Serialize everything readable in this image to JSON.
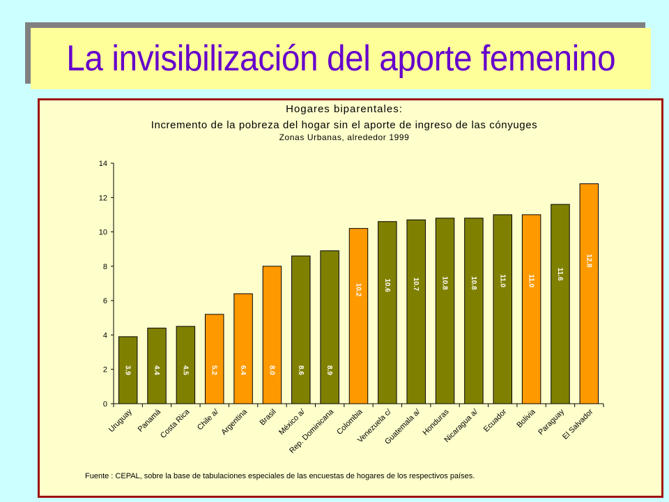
{
  "slide": {
    "title": "La invisibilización del aporte femenino"
  },
  "colors": {
    "background": "#ccffff",
    "title_bg": "#ffff99",
    "title_text": "#6600cc",
    "chart_bg": "#ffffcc",
    "frame": "#a01010",
    "olive": "#808000",
    "orange": "#ff9900"
  },
  "chart_data": {
    "type": "bar",
    "title": "Hogares biparentales:",
    "subtitle": "Incremento de la pobreza del hogar sin el aporte de ingreso de  las cónyuges",
    "subtitle2": "Zonas Urbanas, alrededor 1999",
    "categories": [
      "Uruguay",
      "Panamá",
      "Costa Rica",
      "Chile a/",
      "Argentina",
      "Brasil",
      "México a/",
      "Rep. Dominicana",
      "Colombia",
      "Venezuela c/",
      "Guatemala a/",
      "Honduras",
      "Nicaragua a/",
      "Ecuador",
      "Bolivia",
      "Paraguay",
      "El Salvador"
    ],
    "values": [
      3.9,
      4.4,
      4.5,
      5.2,
      6.4,
      8.0,
      8.6,
      8.9,
      10.2,
      10.6,
      10.7,
      10.8,
      10.8,
      11.0,
      11.0,
      11.6,
      12.8
    ],
    "value_labels": [
      "3.9",
      "4.4",
      "4.5",
      "5.2",
      "6.4",
      "8.0",
      "8.6",
      "8.9",
      "10.2",
      "10.6",
      "10.7",
      "10.8",
      "10.8",
      "11.0",
      "11.0",
      "11.6",
      "12.8"
    ],
    "bar_colors": [
      "olive",
      "olive",
      "olive",
      "orange",
      "orange",
      "orange",
      "olive",
      "olive",
      "orange",
      "olive",
      "olive",
      "olive",
      "olive",
      "olive",
      "orange",
      "olive",
      "orange"
    ],
    "ylim": [
      0,
      14
    ],
    "yticks": [
      "0",
      "2",
      "4",
      "6",
      "8",
      "10",
      "12",
      "14"
    ],
    "xlabel": "",
    "ylabel": "",
    "grid": false,
    "source": "Fuente : CEPAL, sobre la base de tabulaciones especiales de las encuestas de hogares de los respectivos países."
  }
}
